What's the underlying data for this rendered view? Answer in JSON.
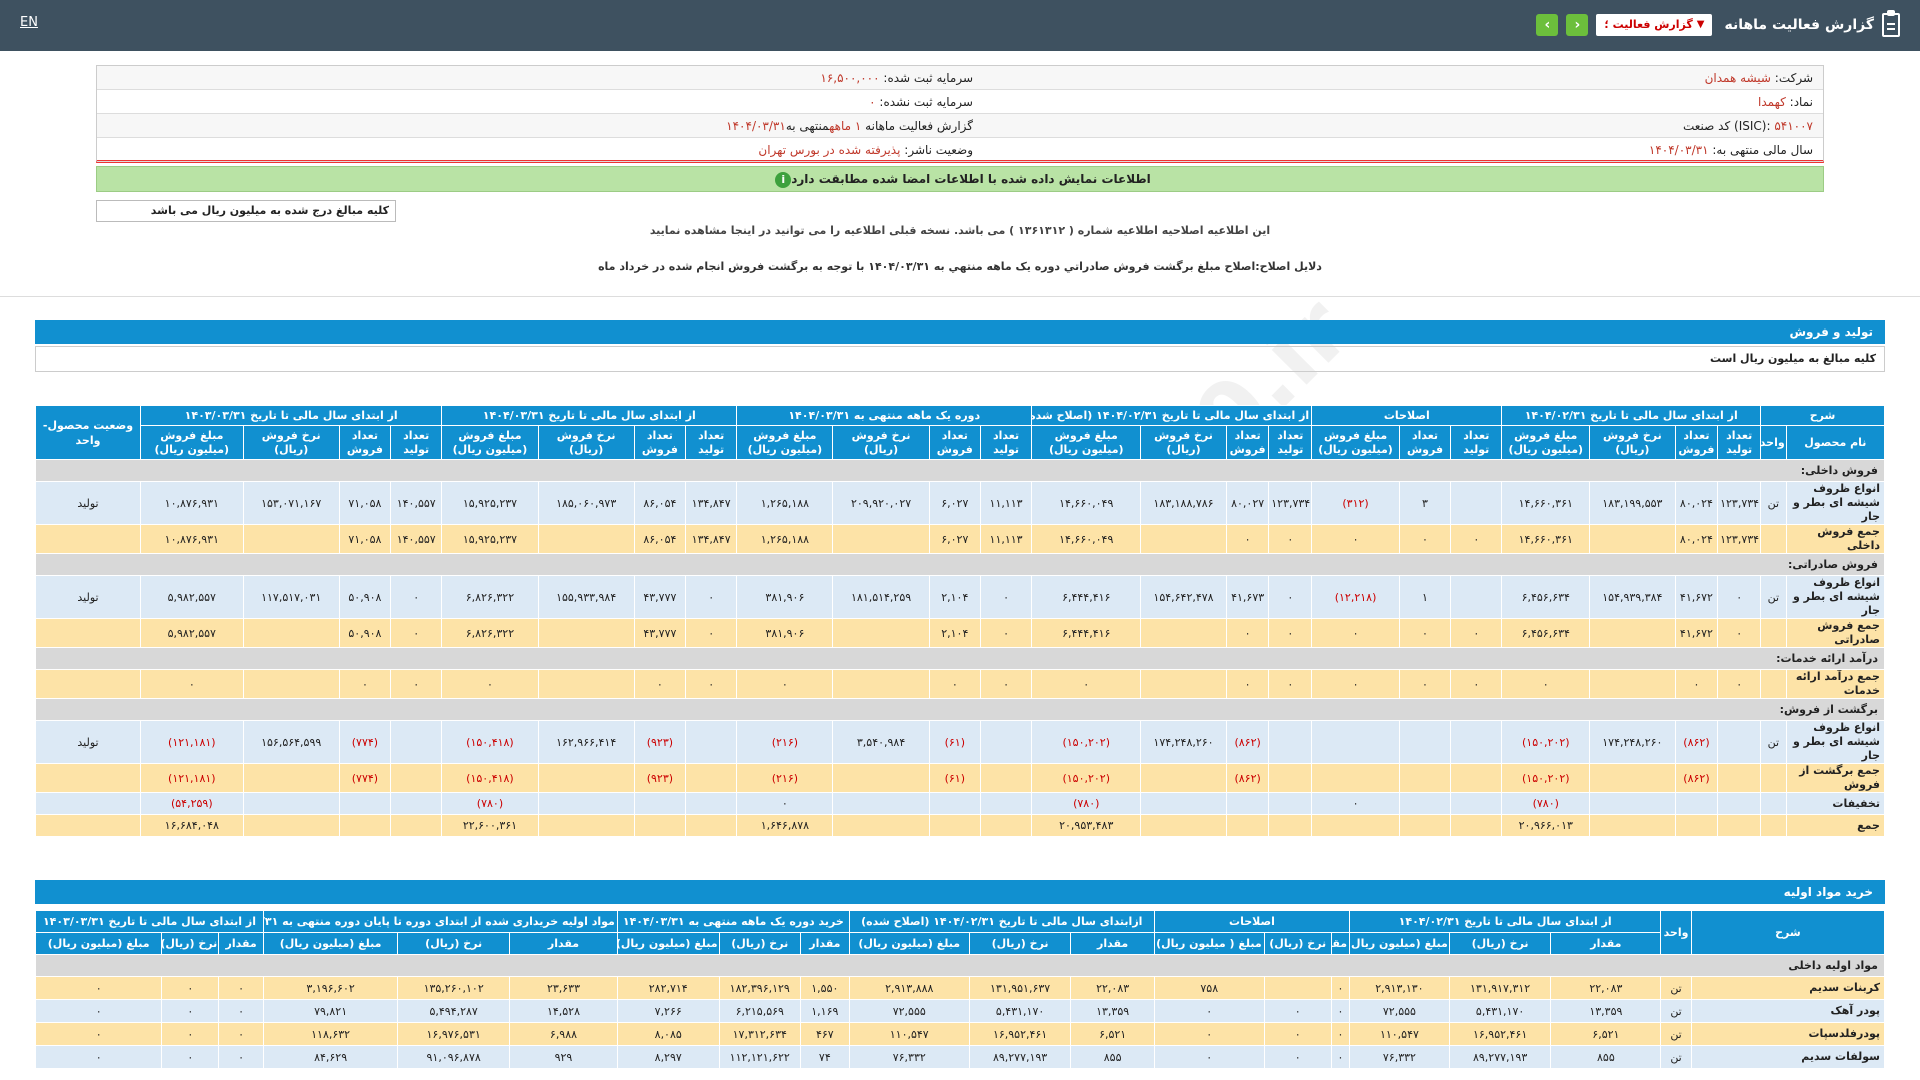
{
  "topbar": {
    "lang": "EN",
    "title": "گزارش فعالیت ماهانه",
    "select": "گزارش فعالیت ؛",
    "prev": "‹",
    "next": "›"
  },
  "info": {
    "company_label": "شرکت:",
    "company": "شیشه همدان",
    "symbol_label": "نماد:",
    "symbol": "کهمدا",
    "isic_label": "کد صنعت (ISIC):",
    "isic": "۵۴۱۰۰۷",
    "fy_label": "سال مالی منتهی به:",
    "fy": "۱۴۰۴/۰۳/۳۱",
    "cap_label": "سرمایه ثبت شده:",
    "cap": "۱۶,۵۰۰,۰۰۰",
    "cap2_label": "سرمایه ثبت نشده:",
    "cap2": "۰",
    "report_label": "گزارش فعالیت ماهانه",
    "report_period": "۱ ماهه",
    "report_end": "منتهی به",
    "report_date": "۱۴۰۴/۰۳/۳۱",
    "status_label": "وضعیت ناشر:",
    "status": "پذیرفته شده در بورس تهران"
  },
  "greenbar": "اطلاعات نمایش داده شده با اطلاعات امضا شده مطابقت دارد",
  "unitbox": "کلیه مبالغ درج شده به میلیون ریال می باشد",
  "note1": "این اطلاعیه اصلاحیه اطلاعیه شماره ( ۱۳۶۱۳۱۲ ) می باشد. نسخه قبلی اطلاعیه را می توانید در اینجا مشاهده نمایید",
  "note2": "دلایل اصلاح:اصلاح مبلغ برگشت فروش صادراتي دوره يک ماهه منتهي به ۱۴۰۴/۰۳/۳۱ با توجه به برگشت فروش انجام شده در خرداد ماه",
  "watermark": "@Codal360.ir",
  "sec1": {
    "title": "تولید و فروش",
    "sub": "کلیه مبالغ به میلیون ریال است"
  },
  "t1": {
    "g": [
      "شرح",
      "از ابتدای سال مالی تا تاریخ ۱۴۰۴/۰۲/۳۱",
      "اصلاحات",
      "از ابتدای سال مالی تا تاریخ ۱۴۰۴/۰۲/۳۱ (اصلاح شده)",
      "دوره یک ماهه منتهی به ۱۴۰۴/۰۳/۳۱",
      "از ابتدای سال مالی تا تاریخ ۱۴۰۴/۰۳/۳۱",
      "از ابتدای سال مالی تا تاریخ ۱۴۰۳/۰۳/۳۱",
      "وضعیت محصول-واحد"
    ],
    "s": {
      "name": "نام محصول",
      "unit": "واحد",
      "prod": "تعداد تولید",
      "sales": "تعداد فروش",
      "rate": "نرخ فروش (ریال)",
      "amount": "مبلغ فروش (میلیون ریال)",
      "amount2": "مبلغ فروش (میلیون ریال)"
    },
    "c_dom": "فروش داخلی:",
    "r_dom": [
      "انواع ظروف شیشه ای بطر و جار",
      "تن",
      "۱۲۳,۷۳۴",
      "۸۰,۰۲۴",
      "۱۸۳,۱۹۹,۵۵۳",
      "۱۴,۶۶۰,۳۶۱",
      "",
      "۳",
      "(۳۱۲)",
      "۱۲۳,۷۳۴",
      "۸۰,۰۲۷",
      "۱۸۳,۱۸۸,۷۸۶",
      "۱۴,۶۶۰,۰۴۹",
      "۱۱,۱۱۳",
      "۶,۰۲۷",
      "۲۰۹,۹۲۰,۰۲۷",
      "۱,۲۶۵,۱۸۸",
      "۱۳۴,۸۴۷",
      "۸۶,۰۵۴",
      "۱۸۵,۰۶۰,۹۷۳",
      "۱۵,۹۲۵,۲۳۷",
      "۱۴۰,۵۵۷",
      "۷۱,۰۵۸",
      "۱۵۳,۰۷۱,۱۶۷",
      "۱۰,۸۷۶,۹۳۱",
      "تولید"
    ],
    "s_dom": [
      "جمع فروش داخلی",
      "",
      "۱۲۳,۷۳۴",
      "۸۰,۰۲۴",
      "",
      "۱۴,۶۶۰,۳۶۱",
      "۰",
      "۰",
      "۰",
      "۰",
      "۰",
      "",
      "۱۴,۶۶۰,۰۴۹",
      "۱۱,۱۱۳",
      "۶,۰۲۷",
      "",
      "۱,۲۶۵,۱۸۸",
      "۱۳۴,۸۴۷",
      "۸۶,۰۵۴",
      "",
      "۱۵,۹۲۵,۲۳۷",
      "۱۴۰,۵۵۷",
      "۷۱,۰۵۸",
      "",
      "۱۰,۸۷۶,۹۳۱",
      ""
    ],
    "c_exp": "فروش صادراتی:",
    "r_exp": [
      "انواع ظروف شیشه ای بطر و جار",
      "تن",
      "۰",
      "۴۱,۶۷۲",
      "۱۵۴,۹۳۹,۳۸۴",
      "۶,۴۵۶,۶۳۴",
      "",
      "۱",
      "(۱۲,۲۱۸)",
      "۰",
      "۴۱,۶۷۳",
      "۱۵۴,۶۴۲,۴۷۸",
      "۶,۴۴۴,۴۱۶",
      "۰",
      "۲,۱۰۴",
      "۱۸۱,۵۱۴,۲۵۹",
      "۳۸۱,۹۰۶",
      "۰",
      "۴۳,۷۷۷",
      "۱۵۵,۹۳۳,۹۸۴",
      "۶,۸۲۶,۳۲۲",
      "۰",
      "۵۰,۹۰۸",
      "۱۱۷,۵۱۷,۰۳۱",
      "۵,۹۸۲,۵۵۷",
      "تولید"
    ],
    "s_exp": [
      "جمع فروش صادراتی",
      "",
      "۰",
      "۴۱,۶۷۲",
      "",
      "۶,۴۵۶,۶۳۴",
      "۰",
      "۰",
      "۰",
      "۰",
      "۰",
      "",
      "۶,۴۴۴,۴۱۶",
      "۰",
      "۲,۱۰۴",
      "",
      "۳۸۱,۹۰۶",
      "۰",
      "۴۳,۷۷۷",
      "",
      "۶,۸۲۶,۳۲۲",
      "۰",
      "۵۰,۹۰۸",
      "",
      "۵,۹۸۲,۵۵۷",
      ""
    ],
    "c_srv": "درآمد ارائه خدمات:",
    "s_srv": [
      "جمع درآمد ارائه خدمات",
      "",
      "۰",
      "۰",
      "",
      "۰",
      "۰",
      "۰",
      "۰",
      "۰",
      "۰",
      "",
      "۰",
      "۰",
      "۰",
      "",
      "۰",
      "۰",
      "۰",
      "",
      "۰",
      "۰",
      "۰",
      "",
      "۰",
      ""
    ],
    "c_ret": "برگشت از فروش:",
    "r_ret": [
      "انواع ظروف شیشه ای بطر و جار",
      "تن",
      "",
      "(۸۶۲)",
      "۱۷۴,۲۴۸,۲۶۰",
      "(۱۵۰,۲۰۲)",
      "",
      "",
      "",
      "",
      "(۸۶۲)",
      "۱۷۴,۲۴۸,۲۶۰",
      "(۱۵۰,۲۰۲)",
      "",
      "(۶۱)",
      "۳,۵۴۰,۹۸۴",
      "(۲۱۶)",
      "",
      "(۹۲۳)",
      "۱۶۲,۹۶۶,۴۱۴",
      "(۱۵۰,۴۱۸)",
      "",
      "(۷۷۴)",
      "۱۵۶,۵۶۴,۵۹۹",
      "(۱۲۱,۱۸۱)",
      "تولید"
    ],
    "s_ret": [
      "جمع برگشت از فروش",
      "",
      "",
      "(۸۶۲)",
      "",
      "(۱۵۰,۲۰۲)",
      "",
      "",
      "",
      "",
      "(۸۶۲)",
      "",
      "(۱۵۰,۲۰۲)",
      "",
      "(۶۱)",
      "",
      "(۲۱۶)",
      "",
      "(۹۲۳)",
      "",
      "(۱۵۰,۴۱۸)",
      "",
      "(۷۷۴)",
      "",
      "(۱۲۱,۱۸۱)",
      ""
    ],
    "disc": [
      "تخفیفات",
      "",
      "",
      "",
      "",
      "(۷۸۰)",
      "",
      "",
      "۰",
      "",
      "",
      "",
      "(۷۸۰)",
      "",
      "",
      "",
      "۰",
      "",
      "",
      "",
      "(۷۸۰)",
      "",
      "",
      "",
      "(۵۴,۲۵۹)",
      ""
    ],
    "tot": [
      "جمع",
      "",
      "",
      "",
      "",
      "۲۰,۹۶۶,۰۱۳",
      "",
      "",
      "",
      "",
      "",
      "",
      "۲۰,۹۵۳,۴۸۳",
      "",
      "",
      "",
      "۱,۶۴۶,۸۷۸",
      "",
      "",
      "",
      "۲۲,۶۰۰,۳۶۱",
      "",
      "",
      "",
      "۱۶,۶۸۴,۰۴۸",
      ""
    ]
  },
  "sec2": {
    "title": "خرید مواد اولیه"
  },
  "t2": {
    "g": [
      "شرح",
      "واحد",
      "از ابتدای سال مالی تا تاریخ ۱۴۰۴/۰۲/۳۱",
      "اصلاحات",
      "ازابتدای سال مالی تا تاریخ ۱۴۰۴/۰۲/۳۱ (اصلاح شده)",
      "خرید دوره یک ماهه منتهی به ۱۴۰۴/۰۳/۳۱",
      "مواد اولیه خریداری شده از ابتدای دوره تا پایان دوره منتهی به ۱۴۰۴/۰۳/۳۱",
      "از ابتدای سال مالی تا تاریخ ۱۴۰۳/۰۳/۳۱"
    ],
    "s": [
      "مقدار",
      "نرخ (ریال)",
      "مبلغ (میلیون ریال)",
      "مقدار",
      "نرخ (ریال)",
      "مبلغ ( میلیون ریال)",
      "مقدار",
      "نرخ (ریال)",
      "مبلغ (میلیون ریال)",
      "مقدار",
      "نرخ (ریال)",
      "مبلغ (میلیون ریال)",
      "مقدار",
      "نرخ (ریال)",
      "مبلغ (میلیون ریال)",
      "مقدار",
      "نرخ (ریال)",
      "مبلغ (میلیون ریال)"
    ],
    "c_dom": "مواد اولیه داخلی",
    "rows": [
      [
        "کربنات سدیم",
        "تن",
        "۲۲,۰۸۳",
        "۱۳۱,۹۱۷,۳۱۲",
        "۲,۹۱۳,۱۳۰",
        "۰",
        "",
        "۷۵۸",
        "۲۲,۰۸۳",
        "۱۳۱,۹۵۱,۶۳۷",
        "۲,۹۱۳,۸۸۸",
        "۱,۵۵۰",
        "۱۸۲,۳۹۶,۱۲۹",
        "۲۸۲,۷۱۴",
        "۲۳,۶۳۳",
        "۱۳۵,۲۶۰,۱۰۲",
        "۳,۱۹۶,۶۰۲",
        "۰",
        "۰",
        "۰"
      ],
      [
        "پودر آهک",
        "تن",
        "۱۳,۳۵۹",
        "۵,۴۳۱,۱۷۰",
        "۷۲,۵۵۵",
        "۰",
        "۰",
        "۰",
        "۱۳,۳۵۹",
        "۵,۴۳۱,۱۷۰",
        "۷۲,۵۵۵",
        "۱,۱۶۹",
        "۶,۲۱۵,۵۶۹",
        "۷,۲۶۶",
        "۱۴,۵۲۸",
        "۵,۴۹۴,۲۸۷",
        "۷۹,۸۲۱",
        "۰",
        "۰",
        "۰"
      ],
      [
        "پودرفلدسپات",
        "تن",
        "۶,۵۲۱",
        "۱۶,۹۵۲,۴۶۱",
        "۱۱۰,۵۴۷",
        "۰",
        "۰",
        "۰",
        "۶,۵۲۱",
        "۱۶,۹۵۲,۴۶۱",
        "۱۱۰,۵۴۷",
        "۴۶۷",
        "۱۷,۳۱۲,۶۳۴",
        "۸,۰۸۵",
        "۶,۹۸۸",
        "۱۶,۹۷۶,۵۳۱",
        "۱۱۸,۶۳۲",
        "۰",
        "۰",
        "۰"
      ],
      [
        "سولفات سدیم",
        "تن",
        "۸۵۵",
        "۸۹,۲۷۷,۱۹۳",
        "۷۶,۳۳۲",
        "۰",
        "۰",
        "۰",
        "۸۵۵",
        "۸۹,۲۷۷,۱۹۳",
        "۷۶,۳۳۲",
        "۷۴",
        "۱۱۲,۱۲۱,۶۲۲",
        "۸,۲۹۷",
        "۹۲۹",
        "۹۱,۰۹۶,۸۷۸",
        "۸۴,۶۲۹",
        "۰",
        "۰",
        "۰"
      ]
    ]
  }
}
